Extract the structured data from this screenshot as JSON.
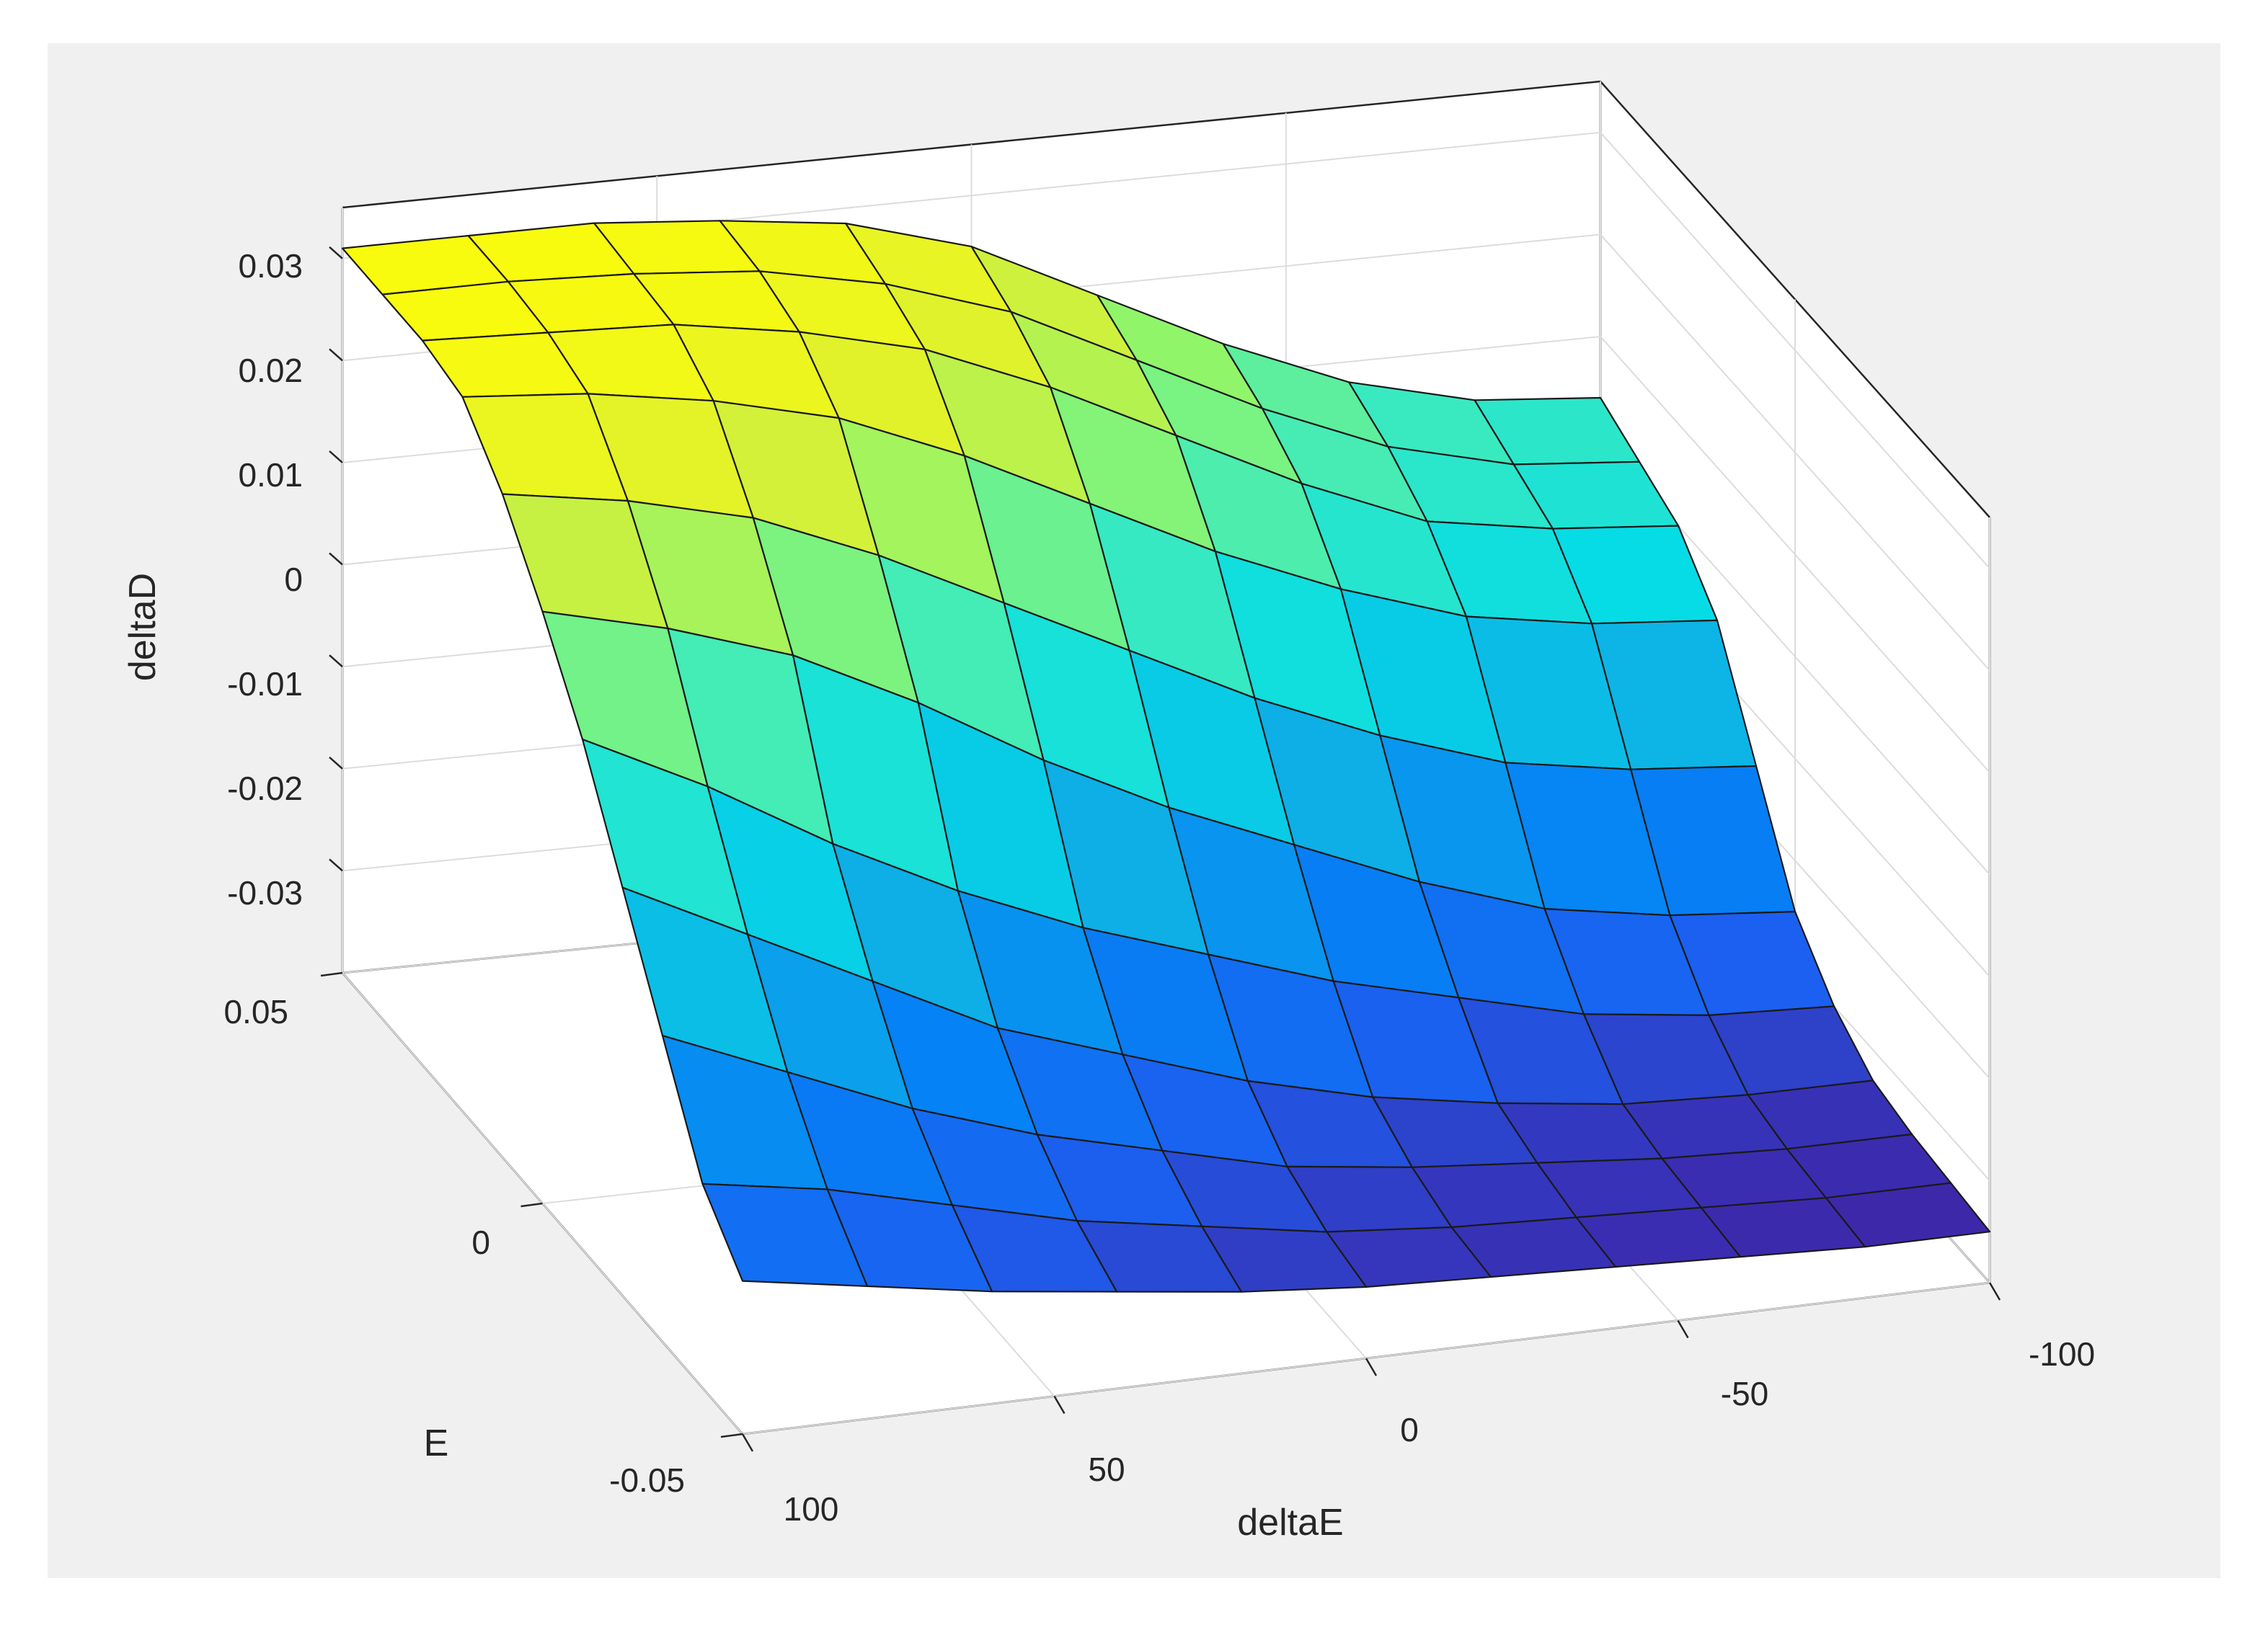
{
  "chart_data": {
    "type": "surface",
    "title": "",
    "xlabel": "deltaE",
    "ylabel": "E",
    "zlabel": "deltaD",
    "xlim": [
      -100,
      100
    ],
    "ylim": [
      -0.05,
      0.05
    ],
    "zlim": [
      -0.04,
      0.035
    ],
    "x_ticks": [
      100,
      50,
      0,
      -50,
      -100
    ],
    "x_tick_labels": [
      "100",
      "50",
      "0",
      "-50",
      "-100"
    ],
    "y_ticks": [
      0.05,
      0,
      -0.05
    ],
    "y_tick_labels": [
      "0.05",
      "0",
      "-0.05"
    ],
    "z_ticks": [
      0.03,
      0.02,
      0.01,
      0,
      -0.01,
      -0.02,
      -0.03
    ],
    "z_tick_labels": [
      "0.03",
      "0.02",
      "0.01",
      "0",
      "-0.01",
      "-0.02",
      "-0.03"
    ],
    "grid": true,
    "colormap": "parula",
    "x": [
      -100,
      -80,
      -60,
      -40,
      -20,
      0,
      20,
      40,
      60,
      80,
      100
    ],
    "y": [
      -0.05,
      -0.04,
      -0.03,
      -0.02,
      -0.01,
      0,
      0.01,
      0.02,
      0.03,
      0.04,
      0.05
    ],
    "z": [
      [
        -0.035,
        -0.035,
        -0.0345,
        -0.034,
        -0.0335,
        -0.033,
        -0.032,
        -0.0305,
        -0.029,
        -0.027,
        -0.025
      ],
      [
        -0.0345,
        -0.0345,
        -0.034,
        -0.0335,
        -0.033,
        -0.032,
        -0.03,
        -0.028,
        -0.025,
        -0.022,
        -0.02
      ],
      [
        -0.034,
        -0.034,
        -0.0335,
        -0.0325,
        -0.0315,
        -0.03,
        -0.027,
        -0.024,
        -0.02,
        -0.015,
        -0.01
      ],
      [
        -0.033,
        -0.033,
        -0.0325,
        -0.031,
        -0.029,
        -0.026,
        -0.022,
        -0.018,
        -0.012,
        -0.006,
        0.0
      ],
      [
        -0.03,
        -0.0295,
        -0.028,
        -0.025,
        -0.022,
        -0.018,
        -0.014,
        -0.009,
        -0.003,
        0.004,
        0.01
      ],
      [
        -0.025,
        -0.024,
        -0.022,
        -0.018,
        -0.013,
        -0.008,
        -0.002,
        0.005,
        0.011,
        0.015,
        0.018
      ],
      [
        -0.015,
        -0.014,
        -0.012,
        -0.008,
        -0.003,
        0.003,
        0.009,
        0.015,
        0.02,
        0.023,
        0.025
      ],
      [
        -0.005,
        -0.004,
        -0.002,
        0.002,
        0.007,
        0.013,
        0.019,
        0.024,
        0.027,
        0.029,
        0.03
      ],
      [
        0.0,
        0.001,
        0.003,
        0.008,
        0.014,
        0.02,
        0.025,
        0.028,
        0.03,
        0.0305,
        0.031
      ],
      [
        0.002,
        0.003,
        0.006,
        0.011,
        0.017,
        0.023,
        0.027,
        0.0295,
        0.0305,
        0.031,
        0.031
      ],
      [
        0.004,
        0.005,
        0.008,
        0.013,
        0.019,
        0.025,
        0.0285,
        0.03,
        0.031,
        0.031,
        0.031
      ]
    ]
  }
}
